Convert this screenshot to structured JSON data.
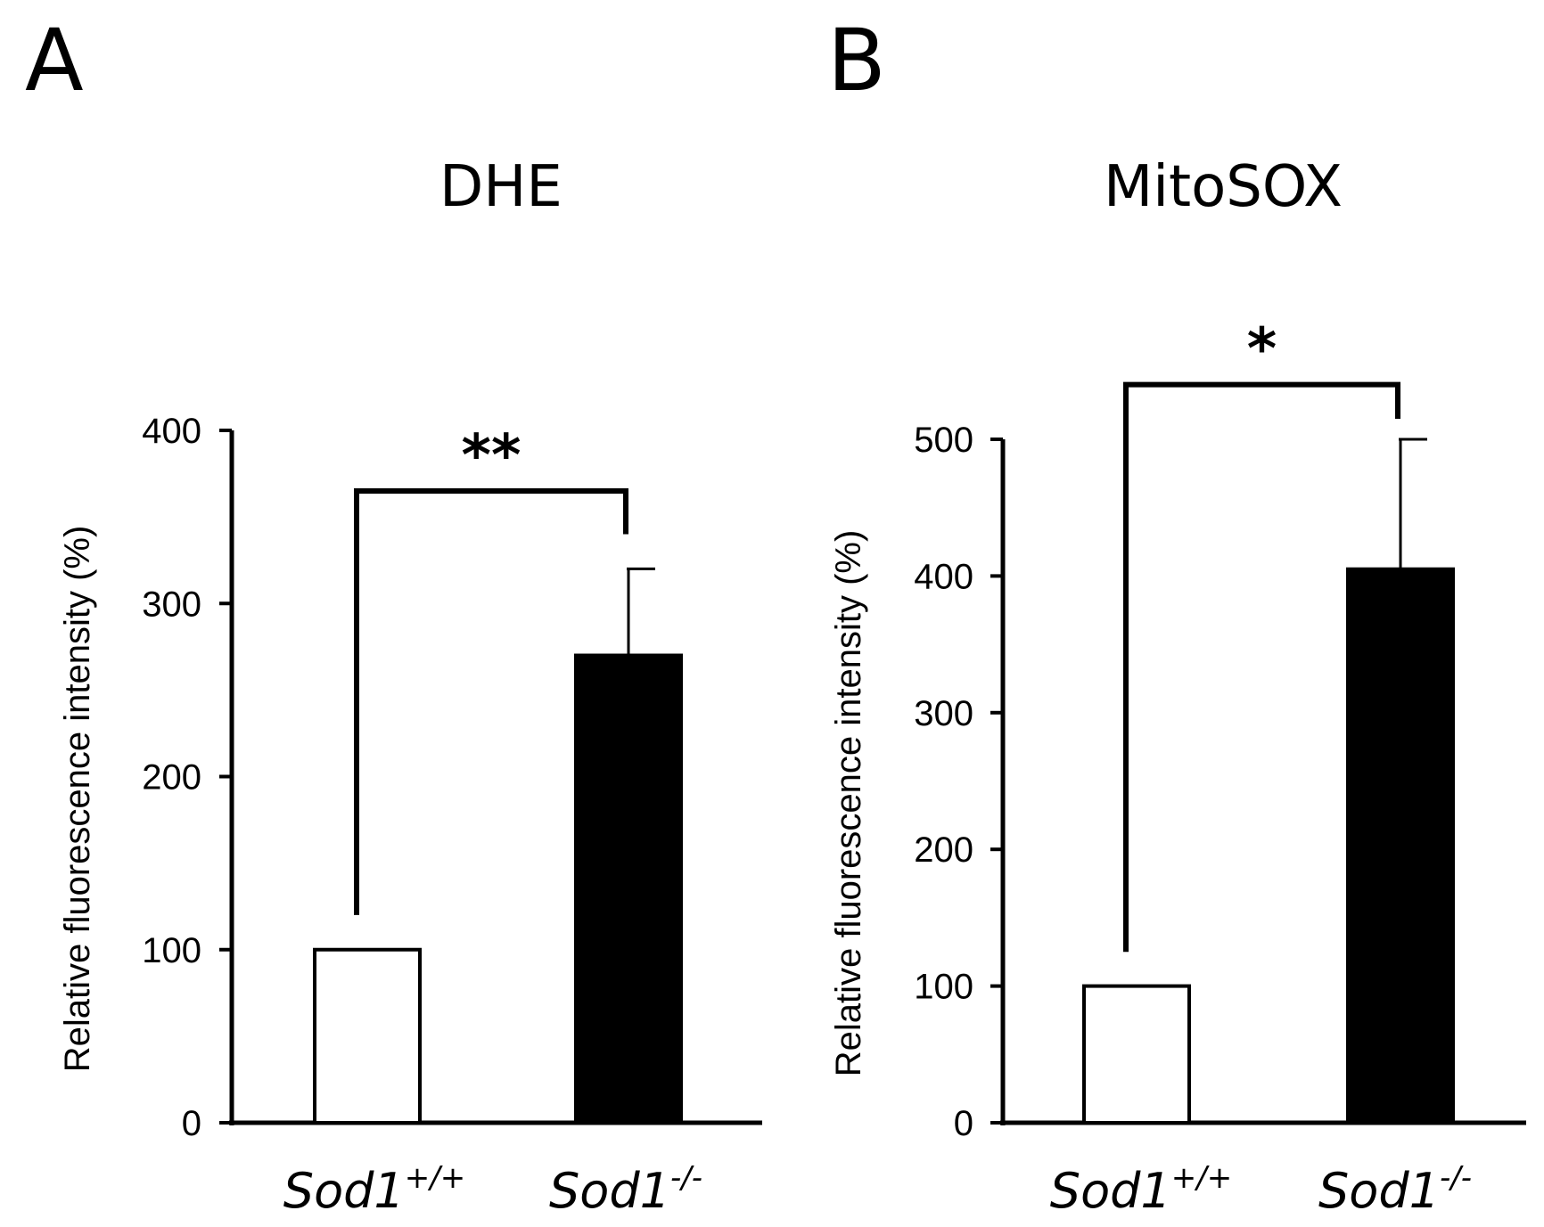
{
  "panels": [
    {
      "letter": "A",
      "title": "DHE"
    },
    {
      "letter": "B",
      "title": "MitoSOX"
    }
  ],
  "colors": {
    "control_bar": "#ffffff",
    "knockout_bar": "#000000",
    "axis": "#000000"
  },
  "chart_data": [
    {
      "type": "bar",
      "title": "DHE",
      "ylabel": "Relative fluorescence intensity (%)",
      "xlabel": "",
      "ylim": [
        0,
        400
      ],
      "yticks": [
        0,
        100,
        200,
        300,
        400
      ],
      "categories": [
        {
          "base": "Sod1",
          "sup": "+/+"
        },
        {
          "base": "Sod1",
          "sup": "-/-"
        }
      ],
      "values": [
        100,
        270
      ],
      "error_upper": [
        null,
        320
      ],
      "significance": {
        "label": "**",
        "between": [
          0,
          1
        ],
        "bracket_left": 120,
        "bracket_right": 340,
        "bracket_top": 365
      }
    },
    {
      "type": "bar",
      "title": "MitoSOX",
      "ylabel": "Relative fluorescence intensity (%)",
      "xlabel": "",
      "ylim": [
        0,
        500
      ],
      "yticks": [
        0,
        100,
        200,
        300,
        400,
        500
      ],
      "categories": [
        {
          "base": "Sod1",
          "sup": "+/+"
        },
        {
          "base": "Sod1",
          "sup": "-/-"
        }
      ],
      "values": [
        100,
        405
      ],
      "error_upper": [
        null,
        500
      ],
      "significance": {
        "label": "*",
        "between": [
          0,
          1
        ],
        "bracket_left": 125,
        "bracket_right": 515,
        "bracket_top": 540
      }
    }
  ]
}
